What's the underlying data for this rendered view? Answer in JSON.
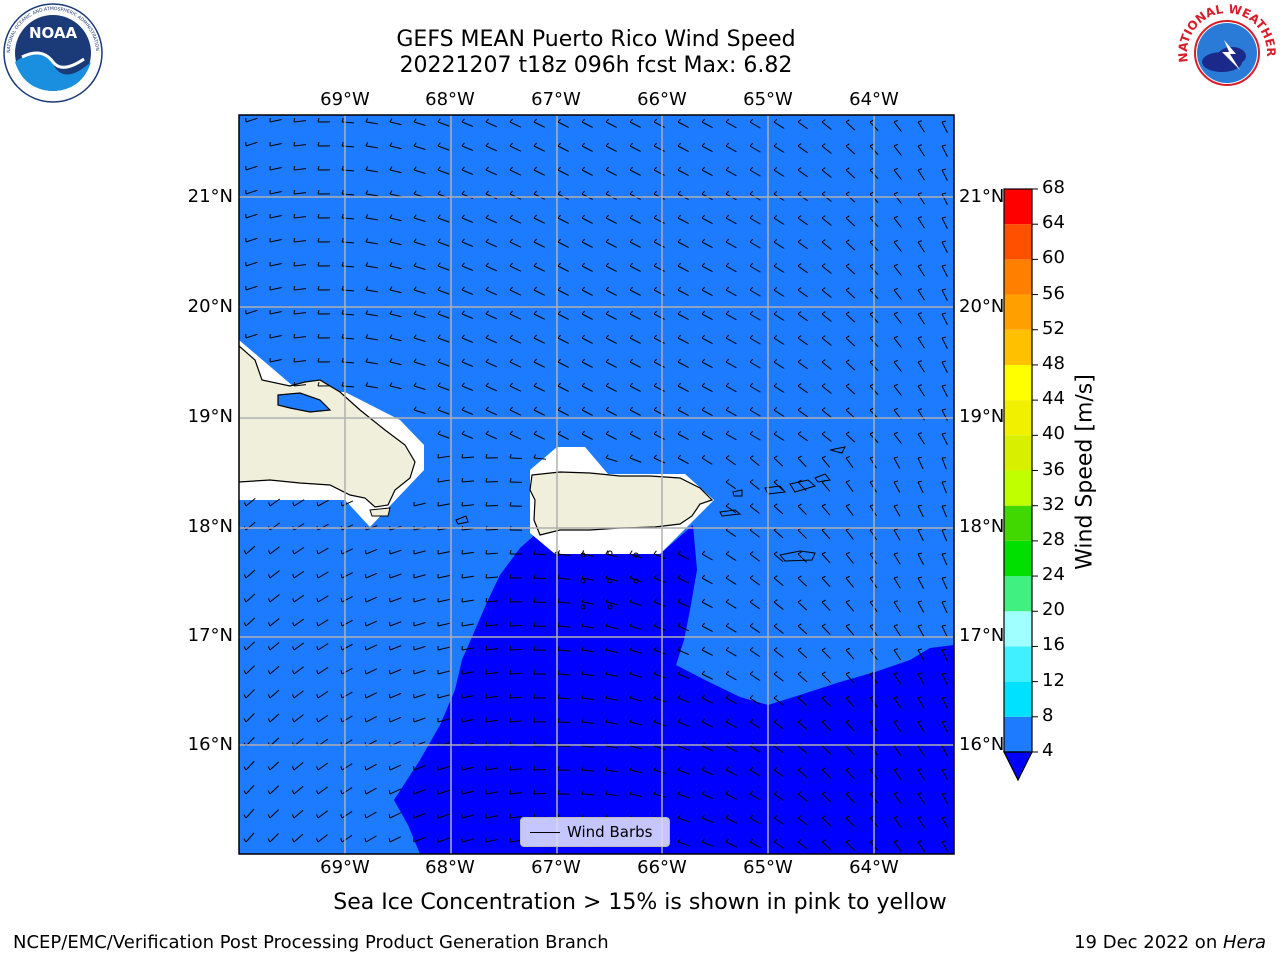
{
  "header": {
    "title_line1": "GEFS MEAN Puerto Rico Wind Speed",
    "title_line2": "20221207 t18z 096h fcst   Max: 6.82"
  },
  "logos": {
    "left_name": "NOAA",
    "left_ring_text": "NATIONAL OCEANIC AND ATMOSPHERIC ADMINISTRATION · U.S. DEPARTMENT OF COMMERCE",
    "right_ring_text": "NATIONAL WEATHER SERVICE"
  },
  "map": {
    "lon_labels": [
      "69°W",
      "68°W",
      "67°W",
      "66°W",
      "65°W",
      "64°W"
    ],
    "lat_labels": [
      "21°N",
      "20°N",
      "19°N",
      "18°N",
      "17°N",
      "16°N"
    ],
    "legend_label": "Wind Barbs",
    "colors": {
      "wind_4_8": "#1c7bff",
      "wind_below_4": "#0000ff",
      "land": "#efefdc",
      "masked": "#ffffff"
    }
  },
  "colorbar": {
    "label": "Wind Speed [m/s]",
    "ticks": [
      "68",
      "64",
      "60",
      "56",
      "52",
      "48",
      "44",
      "40",
      "36",
      "32",
      "28",
      "24",
      "20",
      "16",
      "12",
      "8",
      "4"
    ],
    "bands": [
      {
        "from": 4,
        "to": 8,
        "color": "#1c7bff"
      },
      {
        "from": 8,
        "to": 12,
        "color": "#00e0ff"
      },
      {
        "from": 12,
        "to": 16,
        "color": "#40f0ff"
      },
      {
        "from": 16,
        "to": 20,
        "color": "#a0ffff"
      },
      {
        "from": 20,
        "to": 24,
        "color": "#40f080"
      },
      {
        "from": 24,
        "to": 28,
        "color": "#00e000"
      },
      {
        "from": 28,
        "to": 32,
        "color": "#40d800"
      },
      {
        "from": 32,
        "to": 36,
        "color": "#c0ff00"
      },
      {
        "from": 36,
        "to": 40,
        "color": "#d8f000"
      },
      {
        "from": 40,
        "to": 44,
        "color": "#f0f000"
      },
      {
        "from": 44,
        "to": 48,
        "color": "#ffff00"
      },
      {
        "from": 48,
        "to": 52,
        "color": "#ffc000"
      },
      {
        "from": 52,
        "to": 56,
        "color": "#ffa000"
      },
      {
        "from": 56,
        "to": 60,
        "color": "#ff8000"
      },
      {
        "from": 60,
        "to": 64,
        "color": "#ff5000"
      },
      {
        "from": 64,
        "to": 68,
        "color": "#ff0000"
      }
    ],
    "under_color": "#0000ff"
  },
  "caption": "Sea Ice Concentration > 15% is shown in pink to yellow",
  "footer": {
    "left": "NCEP/EMC/Verification Post Processing Product Generation Branch",
    "right_prefix": "19 Dec 2022 on ",
    "right_machine": "Hera"
  }
}
